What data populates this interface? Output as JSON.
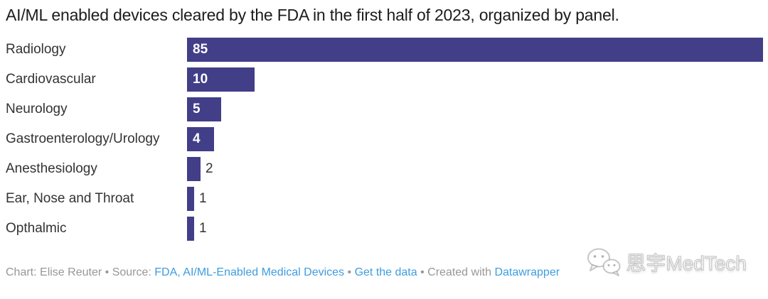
{
  "title": "AI/ML enabled devices cleared by the FDA in the first half of 2023, organized by panel.",
  "chart_data": {
    "type": "bar",
    "orientation": "horizontal",
    "title": "AI/ML enabled devices cleared by the FDA in the first half of 2023, organized by panel.",
    "categories": [
      "Radiology",
      "Cardiovascular",
      "Neurology",
      "Gastroenterology/Urology",
      "Anesthesiology",
      "Ear, Nose and Throat",
      "Opthalmic"
    ],
    "values": [
      85,
      10,
      5,
      4,
      2,
      1,
      1
    ],
    "xlim": [
      0,
      85
    ],
    "grid": false,
    "legend": "none",
    "bar_color": "#423e88",
    "value_label_inside_color": "#ffffff",
    "value_label_outside_color": "#333333"
  },
  "footer": {
    "credit": "Chart: Elise Reuter",
    "separator": "•",
    "source_label": "Source:",
    "created_with": "Created with",
    "links": {
      "source": "FDA, AI/ML-Enabled Medical Devices",
      "get_data": "Get the data",
      "tool": "Datawrapper"
    },
    "text_color": "#979797",
    "link_color": "#3e9ddf"
  },
  "watermark": {
    "icon": "wechat-icon",
    "text": "思宇MedTech"
  }
}
